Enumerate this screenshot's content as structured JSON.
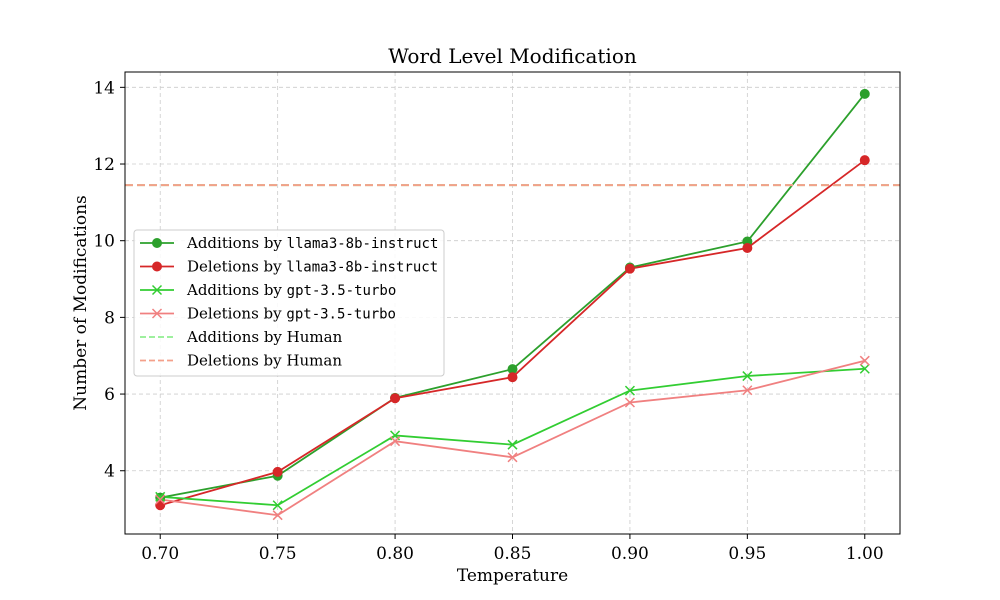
{
  "chart_data": {
    "type": "line",
    "title": "Word Level Modification",
    "xlabel": "Temperature",
    "ylabel": "Number of Modifications",
    "x": [
      0.7,
      0.75,
      0.8,
      0.85,
      0.9,
      0.95,
      1.0
    ],
    "x_tick_labels": [
      "0.70",
      "0.75",
      "0.80",
      "0.85",
      "0.90",
      "0.95",
      "1.00"
    ],
    "y_ticks": [
      4,
      6,
      8,
      10,
      12,
      14
    ],
    "y_tick_labels": [
      "4",
      "6",
      "8",
      "10",
      "12",
      "14"
    ],
    "xlim": [
      0.685,
      1.015
    ],
    "ylim": [
      2.35,
      14.4
    ],
    "grid": true,
    "legend_position": "center-left",
    "series": [
      {
        "name_prefix": "Additions by ",
        "name_model": "llama3-8b-instruct",
        "color": "#2ca02c",
        "marker": "circle",
        "style": "solid",
        "values": [
          3.3,
          3.87,
          5.9,
          6.65,
          9.3,
          9.98,
          13.83
        ]
      },
      {
        "name_prefix": "Deletions by ",
        "name_model": "llama3-8b-instruct",
        "color": "#d62728",
        "marker": "circle",
        "style": "solid",
        "values": [
          3.1,
          3.97,
          5.89,
          6.44,
          9.27,
          9.81,
          12.1
        ]
      },
      {
        "name_prefix": "Additions by ",
        "name_model": "gpt-3.5-turbo",
        "color": "#32cd32",
        "marker": "x",
        "style": "solid",
        "values": [
          3.32,
          3.1,
          4.92,
          4.68,
          6.09,
          6.47,
          6.66
        ]
      },
      {
        "name_prefix": "Deletions by ",
        "name_model": "gpt-3.5-turbo",
        "color": "#f08080",
        "marker": "x",
        "style": "solid",
        "values": [
          3.25,
          2.84,
          4.77,
          4.35,
          5.78,
          6.1,
          6.87
        ]
      },
      {
        "name_prefix": "Additions by Human",
        "name_model": "",
        "color": "#90ee90",
        "marker": "none",
        "style": "dashed",
        "hline": 11.45
      },
      {
        "name_prefix": "Deletions by Human",
        "name_model": "",
        "color": "#f4a08a",
        "marker": "none",
        "style": "dashed",
        "hline": 11.45
      }
    ]
  }
}
